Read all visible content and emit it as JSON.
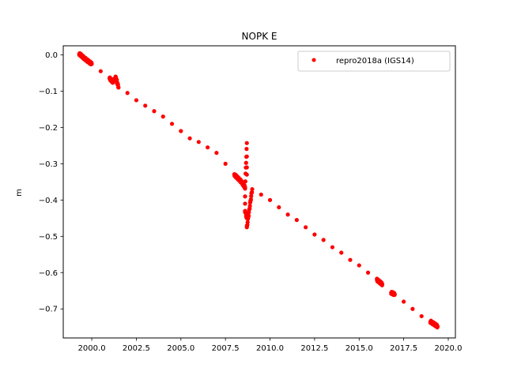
{
  "chart_data": {
    "type": "scatter",
    "title": "NOPK E",
    "xlabel": "",
    "ylabel": "m",
    "xlim": [
      1998.4,
      2020.4
    ],
    "ylim": [
      -0.78,
      0.025
    ],
    "xticks": [
      2000.0,
      2002.5,
      2005.0,
      2007.5,
      2010.0,
      2012.5,
      2015.0,
      2017.5,
      2020.0
    ],
    "xtick_labels": [
      "2000.0",
      "2002.5",
      "2005.0",
      "2007.5",
      "2010.0",
      "2012.5",
      "2015.0",
      "2017.5",
      "2020.0"
    ],
    "yticks": [
      0.0,
      -0.1,
      -0.2,
      -0.3,
      -0.4,
      -0.5,
      -0.6,
      -0.7
    ],
    "ytick_labels": [
      "0.0",
      "−0.1",
      "−0.2",
      "−0.3",
      "−0.4",
      "−0.5",
      "−0.6",
      "−0.7"
    ],
    "grid": false,
    "legend_position": "top-right",
    "color": "#ff0000",
    "series": [
      {
        "name": "repro2018a (IGS14)",
        "points": [
          [
            1999.3,
            0.003
          ],
          [
            1999.6,
            -0.01
          ],
          [
            2000.0,
            -0.025
          ],
          [
            2000.5,
            -0.045
          ],
          [
            2001.0,
            -0.065
          ],
          [
            2001.2,
            -0.075
          ],
          [
            2001.35,
            -0.062
          ],
          [
            2001.5,
            -0.09
          ],
          [
            2002.0,
            -0.105
          ],
          [
            2002.5,
            -0.125
          ],
          [
            2003.0,
            -0.14
          ],
          [
            2003.5,
            -0.155
          ],
          [
            2004.0,
            -0.17
          ],
          [
            2004.5,
            -0.19
          ],
          [
            2005.0,
            -0.21
          ],
          [
            2005.5,
            -0.23
          ],
          [
            2006.0,
            -0.24
          ],
          [
            2006.5,
            -0.255
          ],
          [
            2007.0,
            -0.27
          ],
          [
            2007.5,
            -0.3
          ],
          [
            2008.0,
            -0.33
          ],
          [
            2008.4,
            -0.35
          ],
          [
            2008.6,
            -0.365
          ],
          [
            2008.7,
            -0.243
          ],
          [
            2008.7,
            -0.28
          ],
          [
            2008.7,
            -0.31
          ],
          [
            2008.7,
            -0.33
          ],
          [
            2008.6,
            -0.39
          ],
          [
            2008.6,
            -0.41
          ],
          [
            2008.6,
            -0.43
          ],
          [
            2008.7,
            -0.45
          ],
          [
            2008.7,
            -0.475
          ],
          [
            2009.0,
            -0.37
          ],
          [
            2009.5,
            -0.385
          ],
          [
            2010.0,
            -0.4
          ],
          [
            2010.5,
            -0.42
          ],
          [
            2011.0,
            -0.44
          ],
          [
            2011.5,
            -0.455
          ],
          [
            2012.0,
            -0.475
          ],
          [
            2012.5,
            -0.495
          ],
          [
            2013.0,
            -0.51
          ],
          [
            2013.5,
            -0.53
          ],
          [
            2014.0,
            -0.545
          ],
          [
            2014.5,
            -0.565
          ],
          [
            2015.0,
            -0.58
          ],
          [
            2015.5,
            -0.6
          ],
          [
            2016.0,
            -0.62
          ],
          [
            2016.3,
            -0.632
          ],
          [
            2016.8,
            -0.655
          ],
          [
            2017.0,
            -0.66
          ],
          [
            2017.5,
            -0.68
          ],
          [
            2018.0,
            -0.7
          ],
          [
            2018.5,
            -0.72
          ],
          [
            2019.0,
            -0.735
          ],
          [
            2019.4,
            -0.748
          ]
        ]
      }
    ]
  }
}
